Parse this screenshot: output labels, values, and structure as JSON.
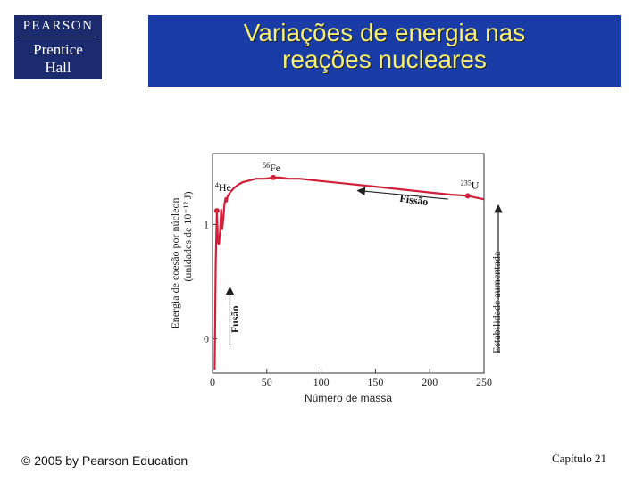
{
  "logo": {
    "brand": "PEARSON",
    "imprint_line1": "Prentice",
    "imprint_line2": "Hall"
  },
  "slide": {
    "title_line1": "Variações de energia nas",
    "title_line2": "reações nucleares"
  },
  "footer": {
    "copyright": "© 2005 by Pearson Education",
    "chapter": "Capítulo 21"
  },
  "colors": {
    "title_bg": "#1a3ca6",
    "title_text": "#f3ef7a",
    "logo_bg": "#1c2a6e",
    "curve": "#d0203a"
  },
  "chart_data": {
    "type": "line",
    "xlabel": "Número de massa",
    "ylabel_line1": "Energia de coesão por núcleon",
    "ylabel_line2": "(unidades de 10⁻¹² J)",
    "right_label": "Estabilidade aumentada",
    "xlim": [
      0,
      250
    ],
    "ylim": [
      -0.3,
      1.62
    ],
    "xticks": [
      0,
      50,
      100,
      150,
      200,
      250
    ],
    "yticks": [
      0,
      1
    ],
    "series": [
      {
        "name": "Energia de coesão por núcleon",
        "x": [
          2,
          3,
          4,
          5,
          6,
          7,
          8,
          9,
          10,
          11,
          12,
          13,
          14,
          15,
          16,
          18,
          20,
          24,
          28,
          32,
          40,
          48,
          56,
          62,
          70,
          80,
          90,
          100,
          120,
          140,
          160,
          180,
          200,
          220,
          235,
          250
        ],
        "y": [
          -0.27,
          0.67,
          1.12,
          0.84,
          0.83,
          0.94,
          1.13,
          0.96,
          1.06,
          1.18,
          1.23,
          1.2,
          1.25,
          1.26,
          1.28,
          1.3,
          1.32,
          1.35,
          1.37,
          1.38,
          1.4,
          1.4,
          1.41,
          1.41,
          1.4,
          1.4,
          1.39,
          1.38,
          1.36,
          1.34,
          1.32,
          1.3,
          1.28,
          1.26,
          1.25,
          1.22
        ]
      }
    ],
    "labeled_points": [
      {
        "label_sup": "4",
        "label": "He",
        "x": 4,
        "y": 1.12
      },
      {
        "label_sup": "56",
        "label": "Fe",
        "x": 56,
        "y": 1.41
      },
      {
        "label_sup": "235",
        "label": "U",
        "x": 235,
        "y": 1.25
      }
    ],
    "annotations": [
      {
        "text": "Fissão",
        "arrow_from_x": 235,
        "arrow_to_x": 160
      },
      {
        "text": "Fusão",
        "arrow_from_x": 12,
        "arrow_to_x": 12
      }
    ]
  }
}
